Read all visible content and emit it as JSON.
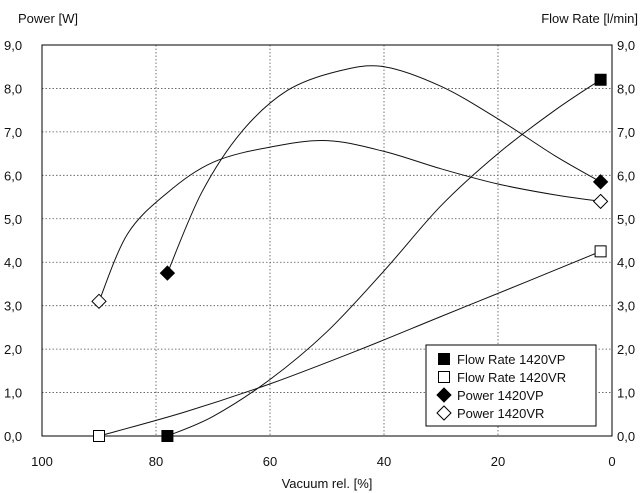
{
  "chart_data": {
    "type": "line",
    "xlabel": "Vacuum rel. [%]",
    "ylabel_left": "Power [W]",
    "ylabel_right": "Flow Rate [l/min]",
    "xlim": [
      100,
      0
    ],
    "ylim": [
      0,
      9
    ],
    "x_ticks": [
      100,
      80,
      60,
      40,
      20,
      0
    ],
    "y_ticks": [
      "0,0",
      "1,0",
      "2,0",
      "3,0",
      "4,0",
      "5,0",
      "6,0",
      "7,0",
      "8,0",
      "9,0"
    ],
    "grid": "dotted",
    "legend_position": "bottom-right",
    "series": [
      {
        "name": "Flow Rate 1420VP",
        "marker": "square-filled",
        "points": [
          [
            78,
            0.0
          ],
          [
            2,
            8.2
          ]
        ],
        "curve": [
          [
            78,
            0.0
          ],
          [
            70,
            0.45
          ],
          [
            60,
            1.3
          ],
          [
            50,
            2.4
          ],
          [
            40,
            3.8
          ],
          [
            30,
            5.3
          ],
          [
            20,
            6.5
          ],
          [
            10,
            7.5
          ],
          [
            2,
            8.2
          ]
        ]
      },
      {
        "name": "Flow Rate 1420VR",
        "marker": "square-open",
        "points": [
          [
            90,
            0.0
          ],
          [
            2,
            4.25
          ]
        ],
        "curve": [
          [
            90,
            0.0
          ],
          [
            75,
            0.55
          ],
          [
            60,
            1.2
          ],
          [
            45,
            1.95
          ],
          [
            30,
            2.75
          ],
          [
            15,
            3.55
          ],
          [
            2,
            4.25
          ]
        ]
      },
      {
        "name": "Power 1420VP",
        "marker": "diamond-filled",
        "points": [
          [
            78,
            3.75
          ],
          [
            2,
            5.85
          ]
        ],
        "curve": [
          [
            78,
            3.75
          ],
          [
            72,
            5.6
          ],
          [
            65,
            7.0
          ],
          [
            57,
            7.95
          ],
          [
            48,
            8.4
          ],
          [
            40,
            8.5
          ],
          [
            30,
            8.05
          ],
          [
            20,
            7.3
          ],
          [
            10,
            6.45
          ],
          [
            2,
            5.85
          ]
        ]
      },
      {
        "name": "Power 1420VR",
        "marker": "diamond-open",
        "points": [
          [
            90,
            3.1
          ],
          [
            2,
            5.4
          ]
        ],
        "curve": [
          [
            90,
            3.1
          ],
          [
            85,
            4.65
          ],
          [
            78,
            5.6
          ],
          [
            70,
            6.3
          ],
          [
            60,
            6.65
          ],
          [
            50,
            6.8
          ],
          [
            40,
            6.55
          ],
          [
            30,
            6.15
          ],
          [
            20,
            5.8
          ],
          [
            10,
            5.55
          ],
          [
            2,
            5.4
          ]
        ]
      }
    ]
  }
}
